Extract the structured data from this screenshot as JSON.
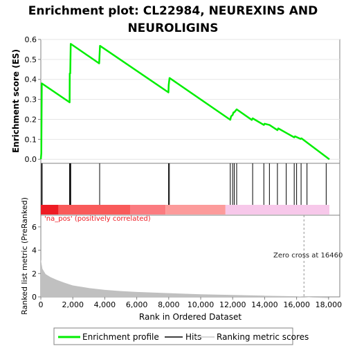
{
  "chart_data": {
    "type": "line",
    "title_lines": [
      "Enrichment plot: CL22984, NEUREXINS AND",
      "NEUROLIGINS"
    ],
    "ylabel_top": "Enrichment score (ES)",
    "ylabel_bottom": "Ranked list metric (PreRanked)",
    "xlabel": "Rank in Ordered Dataset",
    "xlim": [
      0,
      18700
    ],
    "ylim_es": [
      -0.02,
      0.6
    ],
    "ylim_metric": [
      0,
      7
    ],
    "x_ticks": [
      0,
      2000,
      4000,
      6000,
      8000,
      10000,
      12000,
      14000,
      16000,
      18000
    ],
    "x_tick_labels": [
      "0",
      "2,000",
      "4,000",
      "6,000",
      "8,000",
      "10,000",
      "12,000",
      "14,000",
      "16,000",
      "18,000"
    ],
    "es_ticks": [
      0.0,
      0.1,
      0.2,
      0.3,
      0.4,
      0.5,
      0.6
    ],
    "es_tick_labels": [
      "0.0",
      "0.1",
      "0.2",
      "0.3",
      "0.4",
      "0.5",
      "0.6"
    ],
    "metric_ticks": [
      0,
      2,
      4,
      6
    ],
    "metric_tick_labels": [
      "0",
      "2",
      "4",
      "6"
    ],
    "series": [
      {
        "name": "Enrichment profile",
        "color": "#00ee00",
        "x": [
          0,
          30,
          60,
          1800,
          1810,
          1840,
          1870,
          3650,
          3700,
          7980,
          8000,
          8050,
          11850,
          11900,
          12000,
          12050,
          12100,
          12250,
          13200,
          13250,
          13950,
          14000,
          14300,
          14800,
          14850,
          15400,
          15850,
          15900,
          16250,
          16300,
          18050
        ],
        "y": [
          0.0,
          0.03,
          0.38,
          0.285,
          0.43,
          0.43,
          0.578,
          0.48,
          0.568,
          0.335,
          0.372,
          0.407,
          0.198,
          0.215,
          0.222,
          0.235,
          0.235,
          0.25,
          0.197,
          0.205,
          0.172,
          0.178,
          0.172,
          0.146,
          0.155,
          0.13,
          0.11,
          0.115,
          0.102,
          0.105,
          0.0
        ]
      }
    ],
    "hits": [
      50,
      80,
      1800,
      1840,
      1870,
      3680,
      7990,
      8040,
      11850,
      12000,
      12100,
      12250,
      13250,
      13950,
      14300,
      14800,
      15350,
      15850,
      16000,
      16280,
      16650,
      17850
    ],
    "metric_curve": {
      "x": [
        0,
        100,
        300,
        600,
        1000,
        1500,
        2000,
        3000,
        4000,
        5000,
        6000,
        8000,
        10000,
        12000,
        14000,
        16000,
        16460,
        17000,
        18000,
        18050
      ],
      "y": [
        3.2,
        2.4,
        1.95,
        1.7,
        1.45,
        1.2,
        0.98,
        0.76,
        0.6,
        0.5,
        0.42,
        0.32,
        0.22,
        0.16,
        0.1,
        0.05,
        0.0,
        -0.05,
        -0.1,
        -0.1
      ]
    },
    "heat_bar_segments": [
      {
        "from": 0,
        "to": 1100,
        "color": "#ee1c24"
      },
      {
        "from": 1100,
        "to": 5600,
        "color": "#f95a5a"
      },
      {
        "from": 5600,
        "to": 7800,
        "color": "#fb7b80"
      },
      {
        "from": 7800,
        "to": 11550,
        "color": "#fc9b9b"
      },
      {
        "from": 11550,
        "to": 18050,
        "color": "#f7c8ea"
      }
    ],
    "zero_cross_rank": 16460,
    "annotations": {
      "positive": "'na_pos' (positively correlated)",
      "zero_cross": "Zero cross at 16460"
    },
    "legend": [
      {
        "label": "Enrichment profile",
        "color": "#00ee00"
      },
      {
        "label": "Hits",
        "color": "#000000"
      },
      {
        "label": "Ranking metric scores",
        "color": "#c8c8c8"
      }
    ],
    "legend_position": "bottom",
    "colors": {
      "es_line": "#00ee00",
      "hit": "#000000",
      "metric_fill": "#c0c0c0",
      "positive_text": "#ee1c24",
      "zero_cross_text": "#202020",
      "frame": "#808080"
    }
  }
}
